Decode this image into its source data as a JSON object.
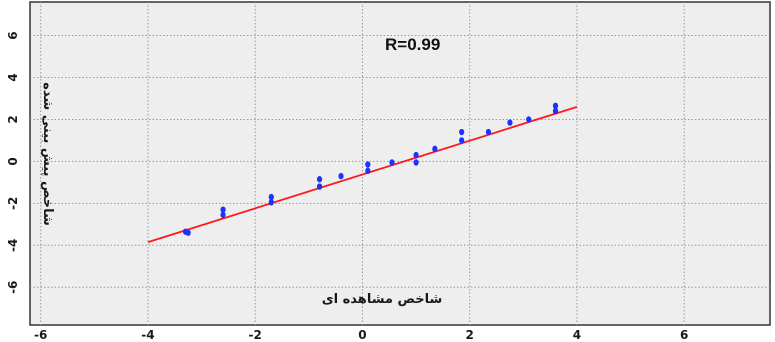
{
  "chart_data": {
    "type": "scatter",
    "xlabel": "شاخص مشاهده ای",
    "ylabel": "شاخص پیش بینی شده",
    "annotation": "R=0.99",
    "xlim": [
      -6.2,
      7.6
    ],
    "ylim": [
      -7.8,
      7.6
    ],
    "xticks": [
      -6,
      -4,
      -2,
      0,
      2,
      4,
      6
    ],
    "yticks": [
      -6,
      -4,
      -2,
      0,
      2,
      4,
      6
    ],
    "grid": true,
    "colors": {
      "background": "#eeeeee",
      "grid": "#9a9a9a",
      "fit_line": "#ff1a1a",
      "points": "#1a33ff",
      "frame": "#333333"
    },
    "fit_line": {
      "x": [
        -4.0,
        4.0
      ],
      "y": [
        -3.85,
        2.6
      ]
    },
    "points": [
      {
        "x": -3.3,
        "y": -3.35
      },
      {
        "x": -3.25,
        "y": -3.4
      },
      {
        "x": -2.6,
        "y": -2.55
      },
      {
        "x": -2.6,
        "y": -2.3
      },
      {
        "x": -1.7,
        "y": -1.7
      },
      {
        "x": -1.7,
        "y": -1.95
      },
      {
        "x": -0.8,
        "y": -1.2
      },
      {
        "x": -0.8,
        "y": -0.85
      },
      {
        "x": -0.4,
        "y": -0.7
      },
      {
        "x": 0.1,
        "y": -0.45
      },
      {
        "x": 0.1,
        "y": -0.15
      },
      {
        "x": 0.55,
        "y": -0.05
      },
      {
        "x": 1.0,
        "y": 0.3
      },
      {
        "x": 1.0,
        "y": -0.05
      },
      {
        "x": 1.35,
        "y": 0.6
      },
      {
        "x": 1.85,
        "y": 1.0
      },
      {
        "x": 1.85,
        "y": 1.4
      },
      {
        "x": 2.35,
        "y": 1.4
      },
      {
        "x": 2.75,
        "y": 1.85
      },
      {
        "x": 3.1,
        "y": 2.0
      },
      {
        "x": 3.6,
        "y": 2.4
      },
      {
        "x": 3.6,
        "y": 2.65
      }
    ]
  }
}
